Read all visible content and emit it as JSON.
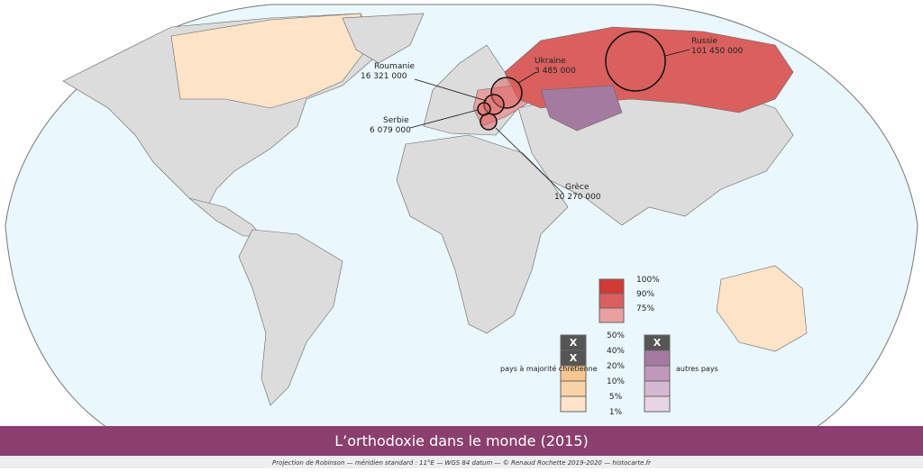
{
  "title": "L’orthodoxie dans le monde (2015)",
  "credit": "Projection de Robinson — méridien standard : 11°E — WGS 84 datum — © Renaud Rochette 2019-2020 — histocarte.fr",
  "callouts": [
    {
      "name": "Russie",
      "value": "101 450 000"
    },
    {
      "name": "Ukraine",
      "value": "3 485 000"
    },
    {
      "name": "Roumanie",
      "value": "16 321 000"
    },
    {
      "name": "Serbie",
      "value": "6 079 000"
    },
    {
      "name": "Grèce",
      "value": "10 270 000"
    }
  ],
  "legend": {
    "majority_labels": [
      "100%",
      "90%",
      "75%"
    ],
    "share_labels": [
      "50%",
      "40%",
      "20%",
      "10%",
      "5%",
      "1%"
    ],
    "christian_label": "pays à majorité chrétienne",
    "other_label": "autres pays",
    "na_mark": "X"
  }
}
